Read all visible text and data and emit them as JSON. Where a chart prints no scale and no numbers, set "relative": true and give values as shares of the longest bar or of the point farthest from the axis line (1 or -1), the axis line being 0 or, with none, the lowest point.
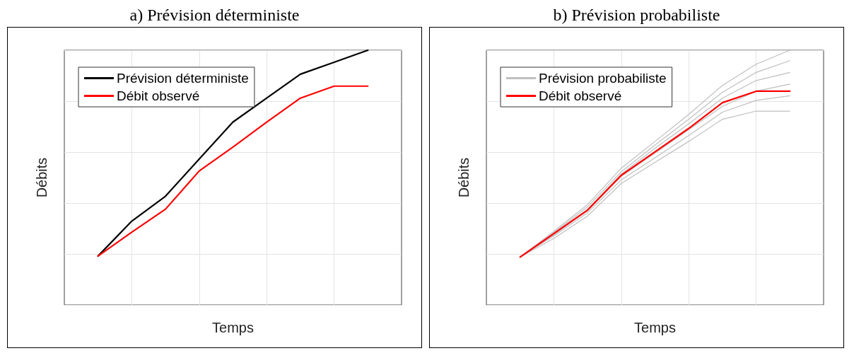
{
  "chart_data": [
    {
      "type": "line",
      "title": "a) Prévision déterministe",
      "xlabel": "Temps",
      "ylabel": "Débits",
      "relative": true,
      "tick_labels": false,
      "grid": true,
      "legend": "top left",
      "marker": "none",
      "line_style": "solid",
      "categories": [
        null,
        null,
        null,
        null,
        null,
        null,
        null,
        null,
        null,
        null,
        null
      ],
      "series": [
        {
          "name": "Prévision déterministe",
          "color": "#000000",
          "values": [
            null,
            0.192,
            0.329,
            0.427,
            0.573,
            0.718,
            0.812,
            0.906,
            0.953,
            1,
            null
          ]
        },
        {
          "name": "Débit observé",
          "color": "#ff0000",
          "values": [
            null,
            0.192,
            0.286,
            0.376,
            0.526,
            0.62,
            0.718,
            0.812,
            0.859,
            0.859,
            null
          ]
        }
      ]
    },
    {
      "type": "line",
      "title": "b) Prévision probabiliste",
      "xlabel": "Temps",
      "ylabel": "Débits",
      "relative": true,
      "tick_labels": false,
      "grid": true,
      "legend": "top left",
      "marker": "none",
      "line_style": "solid",
      "categories": [
        null,
        null,
        null,
        null,
        null,
        null,
        null,
        null,
        null,
        null,
        null
      ],
      "series": [
        {
          "name": "Prévision probabiliste",
          "color": "#bfbfbf",
          "values": [
            null,
            0.188,
            0.289,
            0.394,
            0.537,
            0.642,
            0.748,
            0.862,
            0.945,
            1,
            null
          ]
        },
        {
          "color": "#bfbfbf",
          "values": [
            null,
            0.188,
            0.284,
            0.385,
            0.523,
            0.628,
            0.729,
            0.835,
            0.913,
            0.959,
            null
          ]
        },
        {
          "color": "#bfbfbf",
          "values": [
            null,
            0.188,
            0.28,
            0.376,
            0.514,
            0.615,
            0.711,
            0.812,
            0.881,
            0.913,
            null
          ]
        },
        {
          "color": "#bfbfbf",
          "values": [
            null,
            0.188,
            0.275,
            0.372,
            0.505,
            0.596,
            0.688,
            0.78,
            0.839,
            0.867,
            null
          ]
        },
        {
          "color": "#bfbfbf",
          "values": [
            null,
            0.188,
            0.271,
            0.362,
            0.491,
            0.578,
            0.665,
            0.757,
            0.803,
            0.821,
            null
          ]
        },
        {
          "color": "#bfbfbf",
          "values": [
            null,
            0.188,
            0.261,
            0.349,
            0.477,
            0.56,
            0.642,
            0.729,
            0.761,
            0.761,
            null
          ]
        },
        {
          "name": "Débit observé",
          "color": "#ff0000",
          "values": [
            null,
            0.188,
            0.28,
            0.372,
            0.509,
            0.601,
            0.693,
            0.794,
            0.839,
            0.839,
            null
          ]
        }
      ]
    }
  ]
}
